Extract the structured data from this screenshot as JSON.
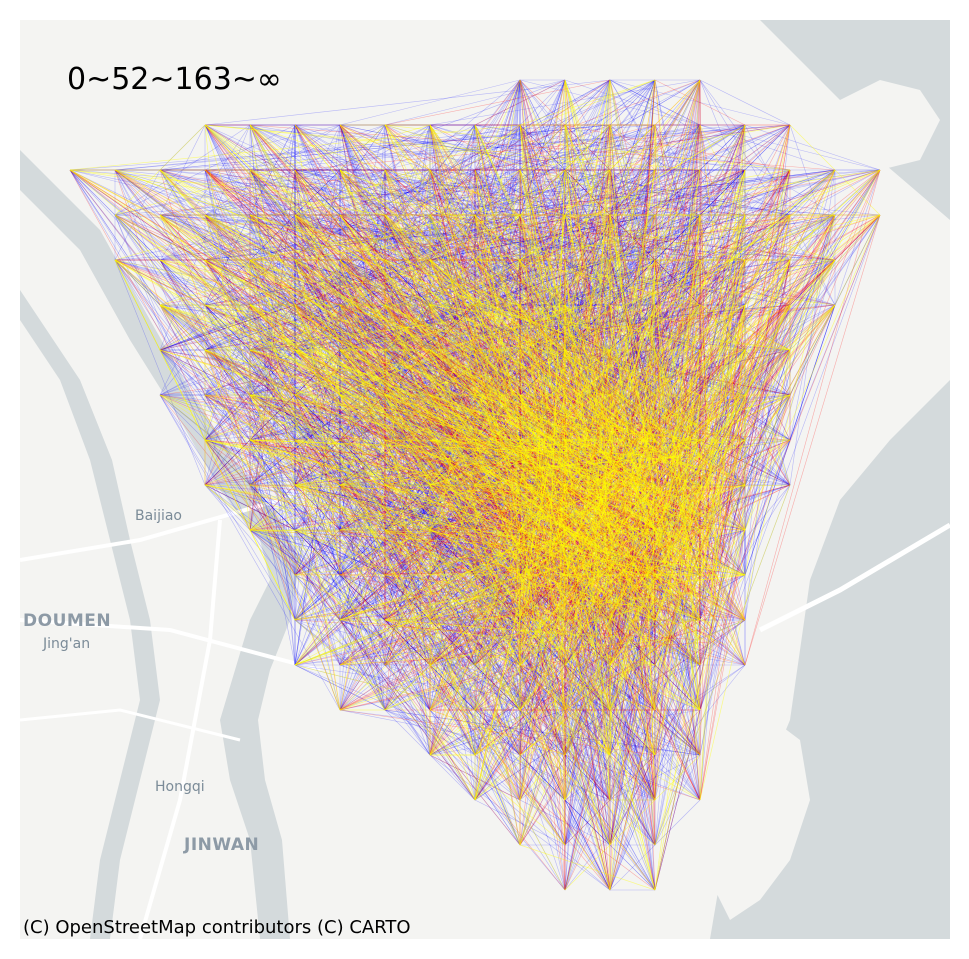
{
  "map": {
    "legend_text": "0~52~163~∞",
    "attribution": "(C) OpenStreetMap contributors (C) CARTO",
    "places": {
      "baijiao": "Baijiao",
      "doumen": "DOUMEN",
      "jingan": "Jing'an",
      "hongqi": "Hongqi",
      "jinwan": "JINWAN"
    },
    "colors": {
      "land": "#f4f4f2",
      "water": "#d4dadc",
      "road": "#ffffff",
      "low": "#0000ff",
      "mid": "#ff0000",
      "high": "#ffff00"
    },
    "flow_classes": [
      "0~52",
      "52~163",
      "163~∞"
    ]
  }
}
